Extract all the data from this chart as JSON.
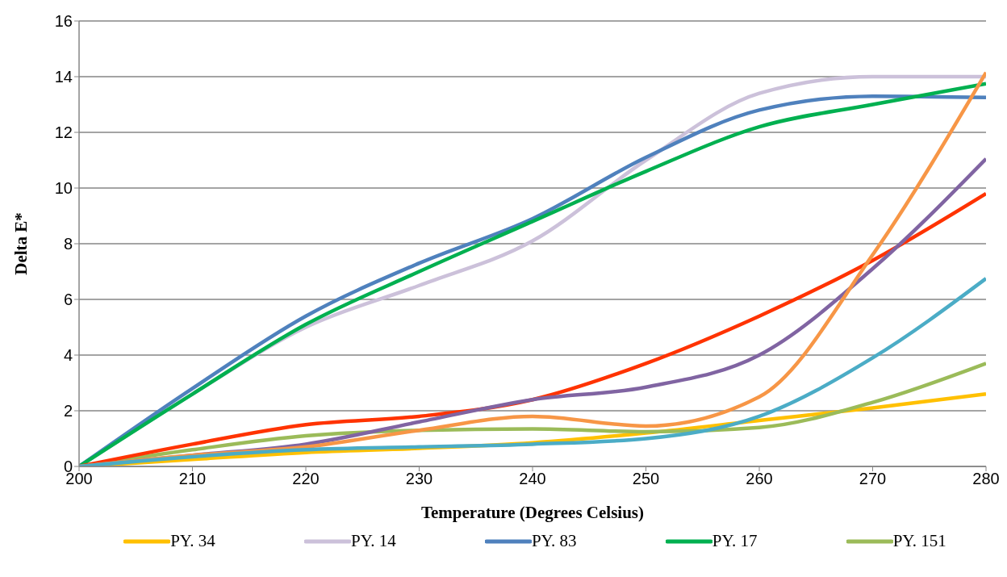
{
  "chart_data": {
    "type": "line",
    "xlabel": "Temperature (Degrees Celsius)",
    "ylabel": "Delta E*",
    "x": [
      200,
      210,
      220,
      230,
      240,
      250,
      260,
      270,
      280
    ],
    "xlim": [
      200,
      280
    ],
    "xticks": [
      200,
      210,
      220,
      230,
      240,
      250,
      260,
      270,
      280
    ],
    "ylim": [
      0,
      16
    ],
    "yticks": [
      0,
      2,
      4,
      6,
      8,
      10,
      12,
      14,
      16
    ],
    "grid": "y",
    "legend": "bottom",
    "marker": "none",
    "line_style": "solid",
    "series": [
      {
        "name": "PY. 34",
        "color": "#ffc000",
        "values": [
          0,
          0.25,
          0.5,
          0.65,
          0.85,
          1.2,
          1.65,
          2.1,
          2.6
        ]
      },
      {
        "name": "PY. 14",
        "color": "#ccc1da",
        "values": [
          0,
          2.6,
          5.0,
          6.5,
          8.1,
          11.0,
          13.4,
          14.0,
          14.0
        ]
      },
      {
        "name": "PY. 83",
        "color": "#4f81bd",
        "values": [
          0,
          2.8,
          5.4,
          7.3,
          8.9,
          11.1,
          12.8,
          13.3,
          13.25
        ]
      },
      {
        "name": "PY. 17",
        "color": "#00b050",
        "values": [
          0,
          2.6,
          5.1,
          7.0,
          8.8,
          10.6,
          12.2,
          13.0,
          13.75
        ]
      },
      {
        "name": "PY. 151",
        "color": "#9bbb59",
        "values": [
          0,
          0.6,
          1.1,
          1.3,
          1.35,
          1.25,
          1.4,
          2.3,
          3.7
        ]
      },
      {
        "color": "#ff3300",
        "values": [
          0,
          0.8,
          1.5,
          1.8,
          2.4,
          3.7,
          5.4,
          7.4,
          9.8
        ]
      },
      {
        "color": "#8064a2",
        "values": [
          0,
          0.4,
          0.8,
          1.6,
          2.4,
          2.85,
          4.0,
          7.1,
          11.05
        ]
      },
      {
        "color": "#f79646",
        "values": [
          0,
          0.4,
          0.7,
          1.3,
          1.8,
          1.45,
          2.5,
          7.6,
          14.15
        ]
      },
      {
        "color": "#4bacc6",
        "values": [
          0,
          0.35,
          0.6,
          0.7,
          0.8,
          1.0,
          1.8,
          3.9,
          6.75
        ]
      }
    ]
  }
}
